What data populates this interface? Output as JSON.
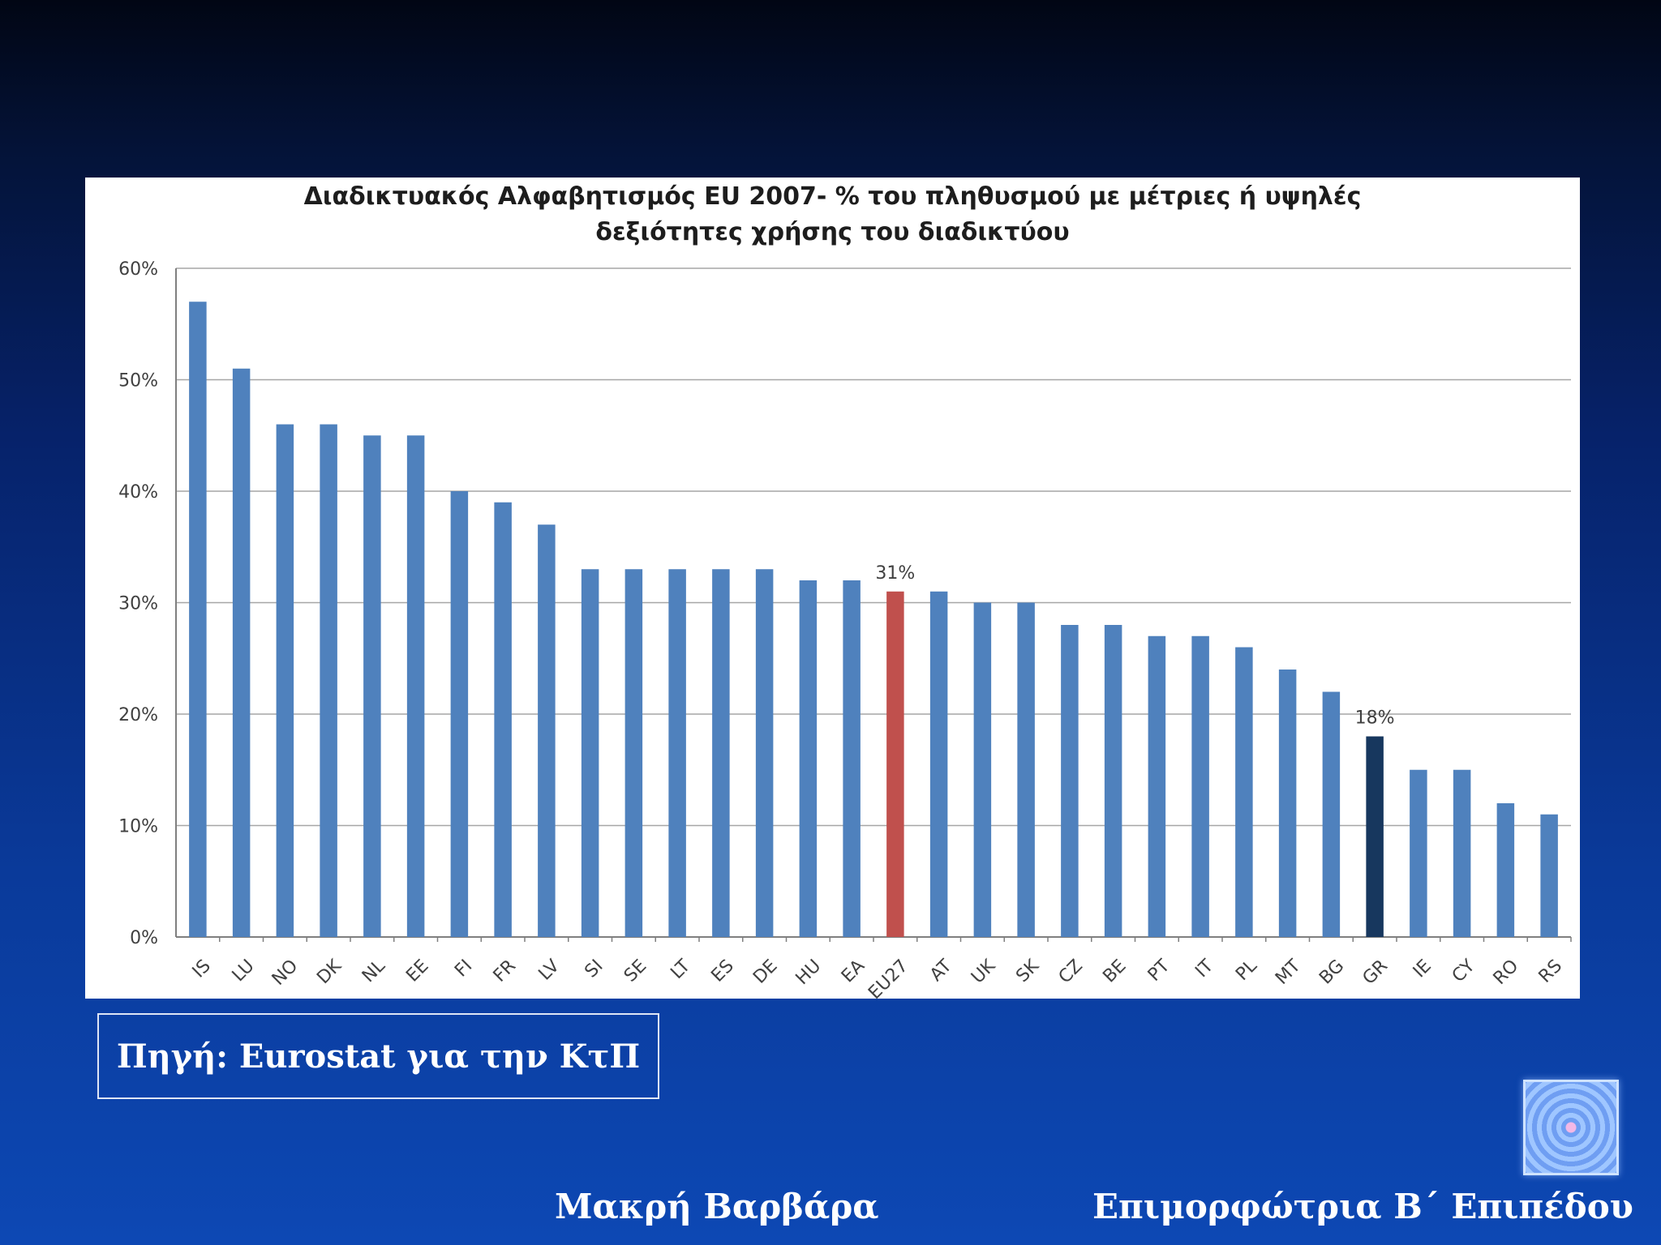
{
  "chart_data": {
    "type": "bar",
    "title_lines": [
      "Διαδικτυακός Αλφαβητισμός EU 2007- % του πληθυσμού με μέτριες ή υψηλές",
      "δεξιότητες χρήσης του διαδικτύου"
    ],
    "categories": [
      "IS",
      "LU",
      "NO",
      "DK",
      "NL",
      "EE",
      "FI",
      "FR",
      "LV",
      "SI",
      "SE",
      "LT",
      "ES",
      "DE",
      "HU",
      "EA",
      "EU27",
      "AT",
      "UK",
      "SK",
      "CZ",
      "BE",
      "PT",
      "IT",
      "PL",
      "MT",
      "BG",
      "GR",
      "IE",
      "CY",
      "RO",
      "RS"
    ],
    "values": [
      57,
      51,
      46,
      46,
      45,
      45,
      40,
      39,
      37,
      33,
      33,
      33,
      33,
      33,
      32,
      32,
      31,
      31,
      30,
      30,
      28,
      28,
      27,
      27,
      26,
      24,
      22,
      18,
      15,
      15,
      12,
      11
    ],
    "ylim": [
      0,
      60
    ],
    "yticks": [
      "0%",
      "10%",
      "20%",
      "30%",
      "40%",
      "50%",
      "60%"
    ],
    "grid": true,
    "data_labels": [
      {
        "category": "EU27",
        "text": "31%"
      },
      {
        "category": "GR",
        "text": "18%"
      }
    ],
    "colors": {
      "default": "#4f81bd",
      "EU27": "#c0504d",
      "GR": "#17375e",
      "grid": "#a6a6a6",
      "axis": "#7f7f7f",
      "text": "#404040"
    }
  },
  "source_label": "Πηγή: Eurostat για την ΚτΠ",
  "footer": {
    "author": "Μακρή Βαρβάρα",
    "role": "Επιμορφώτρια Β΄ Επιπέδου"
  },
  "logo_icon": "concentric-squares-icon"
}
